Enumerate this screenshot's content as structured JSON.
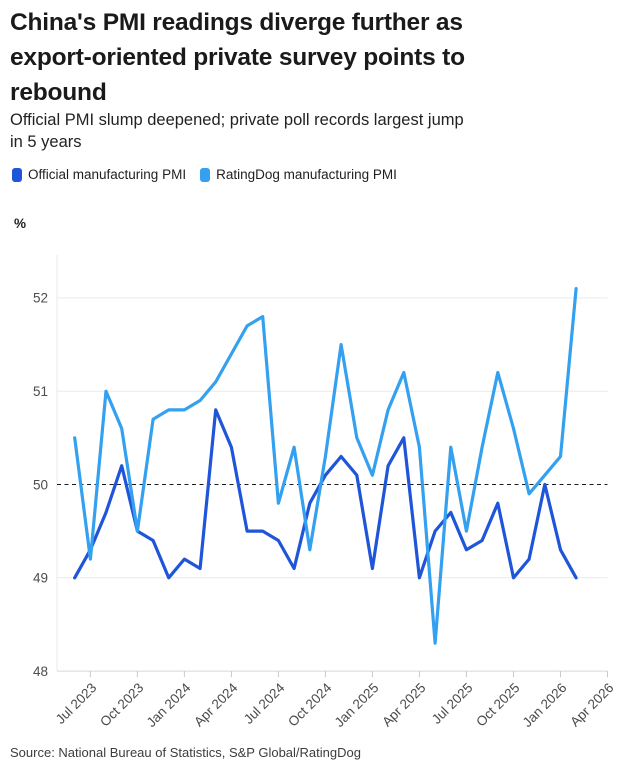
{
  "header": {
    "title": "China's PMI readings diverge further as\nexport-oriented private survey points to\nrebound",
    "subtitle": "Official PMI slump deepened; private poll records largest jump\nin 5 years"
  },
  "legend": [
    {
      "label": "Official manufacturing PMI",
      "color": "#1f55d8"
    },
    {
      "label": "RatingDog manufacturing PMI",
      "color": "#34a0f0"
    }
  ],
  "unit_label": "%",
  "source": "Source: National Bureau of Statistics, S&P Global/RatingDog",
  "chart_data": {
    "type": "line",
    "x": [
      "Jun 2023",
      "Jul 2023",
      "Aug 2023",
      "Sep 2023",
      "Oct 2023",
      "Nov 2023",
      "Dec 2023",
      "Jan 2024",
      "Feb 2024",
      "Mar 2024",
      "Apr 2024",
      "May 2024",
      "Jun 2024",
      "Jul 2024",
      "Aug 2024",
      "Sep 2024",
      "Oct 2024",
      "Nov 2024",
      "Dec 2024",
      "Jan 2025",
      "Feb 2025",
      "Mar 2025",
      "Apr 2025",
      "May 2025",
      "Jun 2025",
      "Jul 2025",
      "Aug 2025",
      "Sep 2025",
      "Oct 2025",
      "Nov 2025",
      "Dec 2025",
      "Jan 2026",
      "Feb 2026"
    ],
    "series": [
      {
        "name": "Official manufacturing PMI",
        "color": "#1f55d8",
        "values": [
          49.0,
          49.3,
          49.7,
          50.2,
          49.5,
          49.4,
          49.0,
          49.2,
          49.1,
          50.8,
          50.4,
          49.5,
          49.5,
          49.4,
          49.1,
          49.8,
          50.1,
          50.3,
          50.1,
          49.1,
          50.2,
          50.5,
          49.0,
          49.5,
          49.7,
          49.3,
          49.4,
          49.8,
          49.0,
          49.2,
          50.0,
          49.3,
          49.0
        ]
      },
      {
        "name": "RatingDog manufacturing PMI",
        "color": "#34a0f0",
        "values": [
          50.5,
          49.2,
          51.0,
          50.6,
          49.5,
          50.7,
          50.8,
          50.8,
          50.9,
          51.1,
          51.4,
          51.7,
          51.8,
          49.8,
          50.4,
          49.3,
          50.3,
          51.5,
          50.5,
          50.1,
          50.8,
          51.2,
          50.4,
          48.3,
          50.4,
          49.5,
          50.4,
          51.2,
          50.6,
          49.9,
          50.1,
          50.3,
          52.1
        ]
      }
    ],
    "ylabel": "%",
    "ylim": [
      48,
      52.5
    ],
    "yticks": [
      48,
      49,
      50,
      51,
      52
    ],
    "xticklabels": [
      "Jul 2023",
      "Oct 2023",
      "Jan 2024",
      "Apr 2024",
      "Jul 2024",
      "Oct 2024",
      "Jan 2025",
      "Apr 2025",
      "Jul 2025",
      "Oct 2025",
      "Jan 2026",
      "Apr 2026"
    ],
    "reference_line": {
      "value": 50,
      "style": "dashed",
      "color": "#1a1a1a"
    },
    "grid": true,
    "legend_position": "top"
  }
}
